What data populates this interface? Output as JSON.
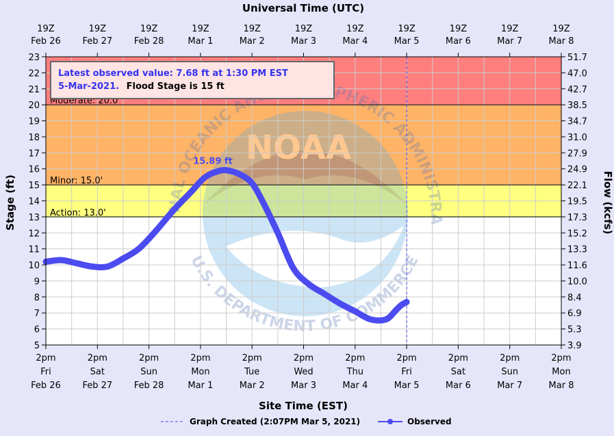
{
  "chart_data": {
    "type": "line",
    "title_top": "Universal Time (UTC)",
    "xlabel": "Site Time (EST)",
    "ylabel": "Stage (ft)",
    "y2label": "Flow (kcfs)",
    "ylim": [
      5,
      23
    ],
    "y_ticks": [
      5,
      6,
      7,
      8,
      9,
      10,
      11,
      12,
      13,
      14,
      15,
      16,
      17,
      18,
      19,
      20,
      21,
      22,
      23
    ],
    "y2_ticks": [
      "3.9",
      "5.3",
      "6.9",
      "8.4",
      "10.0",
      "11.6",
      "13.3",
      "15.2",
      "17.3",
      "19.5",
      "22.1",
      "24.9",
      "27.9",
      "31.0",
      "34.7",
      "38.5",
      "42.7",
      "47.0",
      "51.7"
    ],
    "x_days_range": [
      0,
      10
    ],
    "top_ticks": [
      {
        "l1": "19Z",
        "l2": "Feb 26"
      },
      {
        "l1": "19Z",
        "l2": "Feb 27"
      },
      {
        "l1": "19Z",
        "l2": "Feb 28"
      },
      {
        "l1": "19Z",
        "l2": "Mar  1"
      },
      {
        "l1": "19Z",
        "l2": "Mar  2"
      },
      {
        "l1": "19Z",
        "l2": "Mar  3"
      },
      {
        "l1": "19Z",
        "l2": "Mar  4"
      },
      {
        "l1": "19Z",
        "l2": "Mar  5"
      },
      {
        "l1": "19Z",
        "l2": "Mar  6"
      },
      {
        "l1": "19Z",
        "l2": "Mar  7"
      },
      {
        "l1": "19Z",
        "l2": "Mar  8"
      }
    ],
    "bottom_ticks": [
      {
        "l1": "2pm",
        "l2": "Fri",
        "l3": "Feb 26"
      },
      {
        "l1": "2pm",
        "l2": "Sat",
        "l3": "Feb 27"
      },
      {
        "l1": "2pm",
        "l2": "Sun",
        "l3": "Feb 28"
      },
      {
        "l1": "2pm",
        "l2": "Mon",
        "l3": "Mar 1"
      },
      {
        "l1": "2pm",
        "l2": "Tue",
        "l3": "Mar 2"
      },
      {
        "l1": "2pm",
        "l2": "Wed",
        "l3": "Mar 3"
      },
      {
        "l1": "2pm",
        "l2": "Thu",
        "l3": "Mar 4"
      },
      {
        "l1": "2pm",
        "l2": "Fri",
        "l3": "Mar 5"
      },
      {
        "l1": "2pm",
        "l2": "Sat",
        "l3": "Mar 6"
      },
      {
        "l1": "2pm",
        "l2": "Sun",
        "l3": "Mar 7"
      },
      {
        "l1": "2pm",
        "l2": "Mon",
        "l3": "Mar 8"
      }
    ],
    "bands": [
      {
        "name": "major",
        "from": 20,
        "to": 23,
        "color": "#ff7f7f"
      },
      {
        "name": "moderate",
        "from": 15,
        "to": 20,
        "color": "#ffb366"
      },
      {
        "name": "minor",
        "from": 13,
        "to": 15,
        "color": "#ffff80"
      },
      {
        "name": "normal",
        "from": 5,
        "to": 13,
        "color": "#ffffff"
      }
    ],
    "thresholds": [
      {
        "label": "Moderate: 20.0'",
        "value": 20
      },
      {
        "label": "Minor: 15.0'",
        "value": 15
      },
      {
        "label": "Action: 13.0'",
        "value": 13
      }
    ],
    "series": [
      {
        "name": "Observed",
        "color": "#4b4bf0",
        "x": [
          0,
          0.3,
          0.6,
          0.9,
          1.2,
          1.5,
          1.8,
          2.1,
          2.5,
          2.8,
          3.1,
          3.4,
          3.6,
          3.8,
          4.0,
          4.2,
          4.5,
          4.8,
          5.1,
          5.4,
          5.7,
          6.0,
          6.3,
          6.6,
          6.8,
          6.9,
          7.0
        ],
        "y": [
          10.2,
          10.3,
          10.1,
          9.9,
          9.9,
          10.4,
          11.0,
          12.0,
          13.5,
          14.5,
          15.5,
          15.9,
          15.85,
          15.6,
          15.1,
          14.0,
          12.0,
          9.8,
          8.8,
          8.2,
          7.6,
          7.1,
          6.6,
          6.6,
          7.2,
          7.5,
          7.68
        ]
      }
    ],
    "peak_label": "15.89 ft",
    "peak_x": 3.4,
    "peak_y": 15.89,
    "graph_created_x": 7.0,
    "info_box": {
      "line1": "Latest observed value: 7.68 ft at 1:30 PM EST",
      "line2_blue": "5-Mar-2021.",
      "line2_black": "Flood Stage is 15 ft"
    },
    "legend": {
      "created": "Graph Created (2:07PM Mar 5, 2021)",
      "observed": "Observed"
    },
    "watermark": {
      "logo_text": "NOAA",
      "top_arc": "NATIONAL OCEANIC AND ATMOSPHERIC ADMINISTRATION",
      "bottom_arc": "U.S. DEPARTMENT OF COMMERCE"
    },
    "colors": {
      "background": "#e6e6fa",
      "observed": "#4b4bf0",
      "info_blue": "#3333ee"
    }
  }
}
